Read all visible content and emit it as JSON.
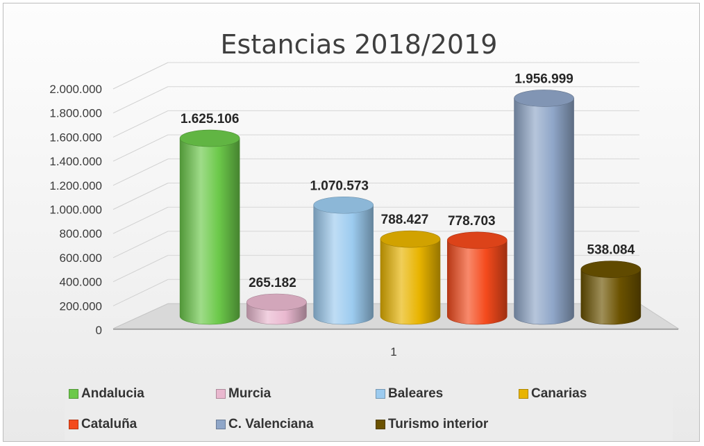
{
  "chart_data": {
    "type": "bar",
    "title": "Estancias 2018/2019",
    "categories": [
      "1"
    ],
    "series": [
      {
        "name": "Andalucia",
        "values": [
          1625106
        ],
        "label": "1.625.106",
        "color": "#6cc94a"
      },
      {
        "name": "Murcia",
        "values": [
          265182
        ],
        "label": "265.182",
        "color": "#e9b8cf"
      },
      {
        "name": "Baleares",
        "values": [
          1070573
        ],
        "label": "1.070.573",
        "color": "#9ccbef"
      },
      {
        "name": "Canarias",
        "values": [
          788427
        ],
        "label": "788.427",
        "color": "#e8b400"
      },
      {
        "name": "Cataluña",
        "values": [
          778703
        ],
        "label": "778.703",
        "color": "#f44a1c"
      },
      {
        "name": "C. Valenciana",
        "values": [
          1956999
        ],
        "label": "1.956.999",
        "color": "#8fa6c8"
      },
      {
        "name": "Turismo interior",
        "values": [
          538084
        ],
        "label": "538.084",
        "color": "#6b5200"
      }
    ],
    "ylim": [
      0,
      2000000
    ],
    "yticks": [
      "0",
      "200.000",
      "400.000",
      "600.000",
      "800.000",
      "1.000.000",
      "1.200.000",
      "1.400.000",
      "1.600.000",
      "1.800.000",
      "2.000.000"
    ],
    "grid": true,
    "legend": "bottom",
    "style": "3d-cylinder"
  }
}
